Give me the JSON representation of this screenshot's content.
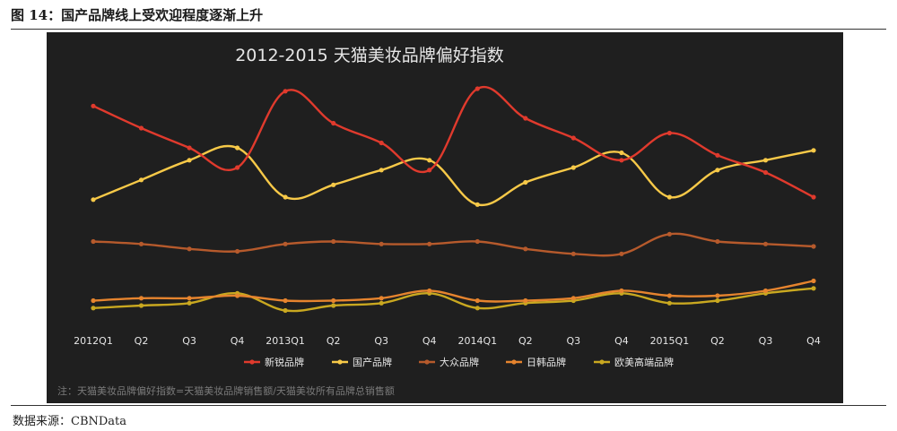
{
  "figure": {
    "title": "图 14：国产品牌线上受欢迎程度逐渐上升"
  },
  "source": "数据来源：CBNData",
  "colors": {
    "background": "#1f1f1f",
    "axis_text": "#e6e6e6",
    "footnote": "#7a7a7a"
  },
  "chart_data": {
    "type": "line",
    "title": "2012-2015 天猫美妆品牌偏好指数",
    "categories": [
      "2012Q1",
      "Q2",
      "Q3",
      "Q4",
      "2013Q1",
      "Q2",
      "Q3",
      "Q4",
      "2014Q1",
      "Q2",
      "Q3",
      "Q4",
      "2015Q1",
      "Q2",
      "Q3",
      "Q4"
    ],
    "ylim": [
      0,
      100
    ],
    "grid": false,
    "legend": "bottom",
    "footnote": "注：天猫美妆品牌偏好指数=天猫美妆品牌销售额/天猫美妆所有品牌总销售额",
    "series": [
      {
        "name": "新锐品牌",
        "color": "#e03a2d",
        "values": [
          89,
          80,
          72,
          64,
          95,
          82,
          74,
          63,
          96,
          84,
          76,
          67,
          78,
          69,
          62,
          52
        ]
      },
      {
        "name": "国产品牌",
        "color": "#f7c948",
        "values": [
          51,
          59,
          67,
          72,
          52,
          57,
          63,
          67,
          49,
          58,
          64,
          70,
          52,
          63,
          67,
          71
        ]
      },
      {
        "name": "大众品牌",
        "color": "#b65a2c",
        "values": [
          34,
          33,
          31,
          30,
          33,
          34,
          33,
          33,
          34,
          31,
          29,
          29,
          37,
          34,
          33,
          32
        ]
      },
      {
        "name": "日韩品牌",
        "color": "#e6842e",
        "values": [
          10,
          11,
          11,
          12,
          10,
          10,
          11,
          14,
          10,
          10,
          11,
          14,
          12,
          12,
          14,
          18
        ]
      },
      {
        "name": "欧美高端品牌",
        "color": "#c9a820",
        "values": [
          7,
          8,
          9,
          13,
          6,
          8,
          9,
          13,
          7,
          9,
          10,
          13,
          9,
          10,
          13,
          15
        ]
      }
    ]
  }
}
